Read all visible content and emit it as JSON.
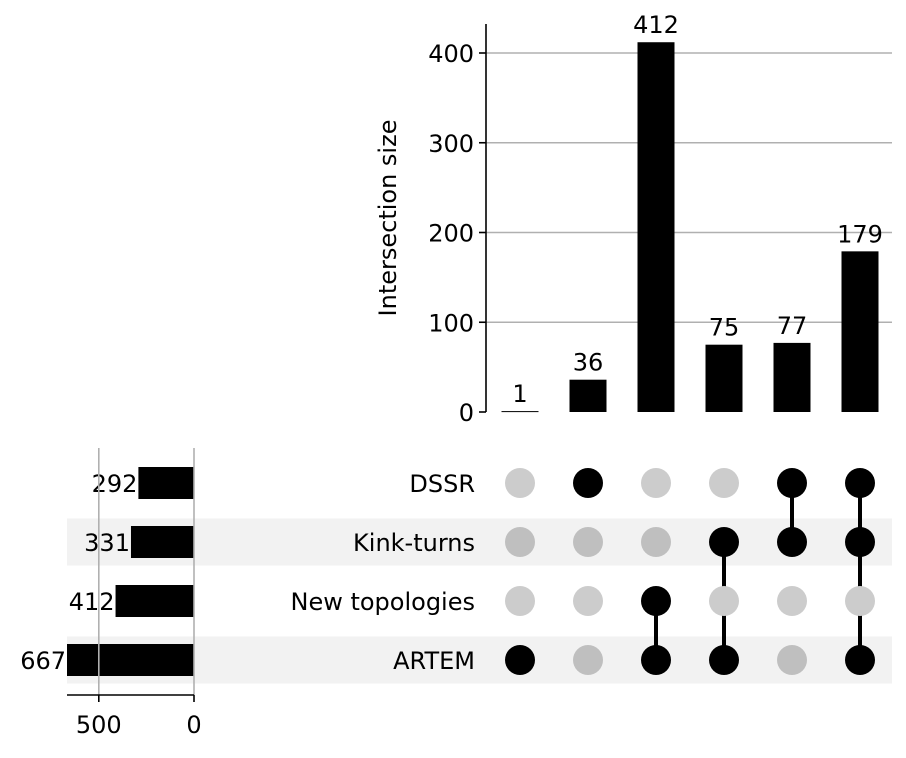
{
  "chart_data": {
    "type": "upset",
    "ylabel": "Intersection size",
    "ylim": [
      0,
      435
    ],
    "yticks": [
      0,
      100,
      200,
      300,
      400
    ],
    "grid": true,
    "sets": [
      {
        "name": "DSSR",
        "size": 292
      },
      {
        "name": "Kink-turns",
        "size": 331
      },
      {
        "name": "New topologies",
        "size": 412
      },
      {
        "name": "ARTEM",
        "size": 667
      }
    ],
    "set_size_ticks": [
      500,
      0
    ],
    "set_size_xlim": [
      667,
      0
    ],
    "intersections": [
      {
        "sets": [
          "ARTEM"
        ],
        "value": 1
      },
      {
        "sets": [
          "DSSR"
        ],
        "value": 36
      },
      {
        "sets": [
          "New topologies",
          "ARTEM"
        ],
        "value": 412
      },
      {
        "sets": [
          "Kink-turns",
          "ARTEM"
        ],
        "value": 75
      },
      {
        "sets": [
          "DSSR",
          "Kink-turns"
        ],
        "value": 77
      },
      {
        "sets": [
          "DSSR",
          "Kink-turns",
          "ARTEM"
        ],
        "value": 179
      }
    ],
    "colors": {
      "bar": "#000000",
      "dot_active": "#000000",
      "dot_inactive": "#cccccc",
      "dot_inactive_shaded": "#bfbfbf",
      "row_shade": "#f2f2f2",
      "grid": "#b0b0b0"
    }
  }
}
